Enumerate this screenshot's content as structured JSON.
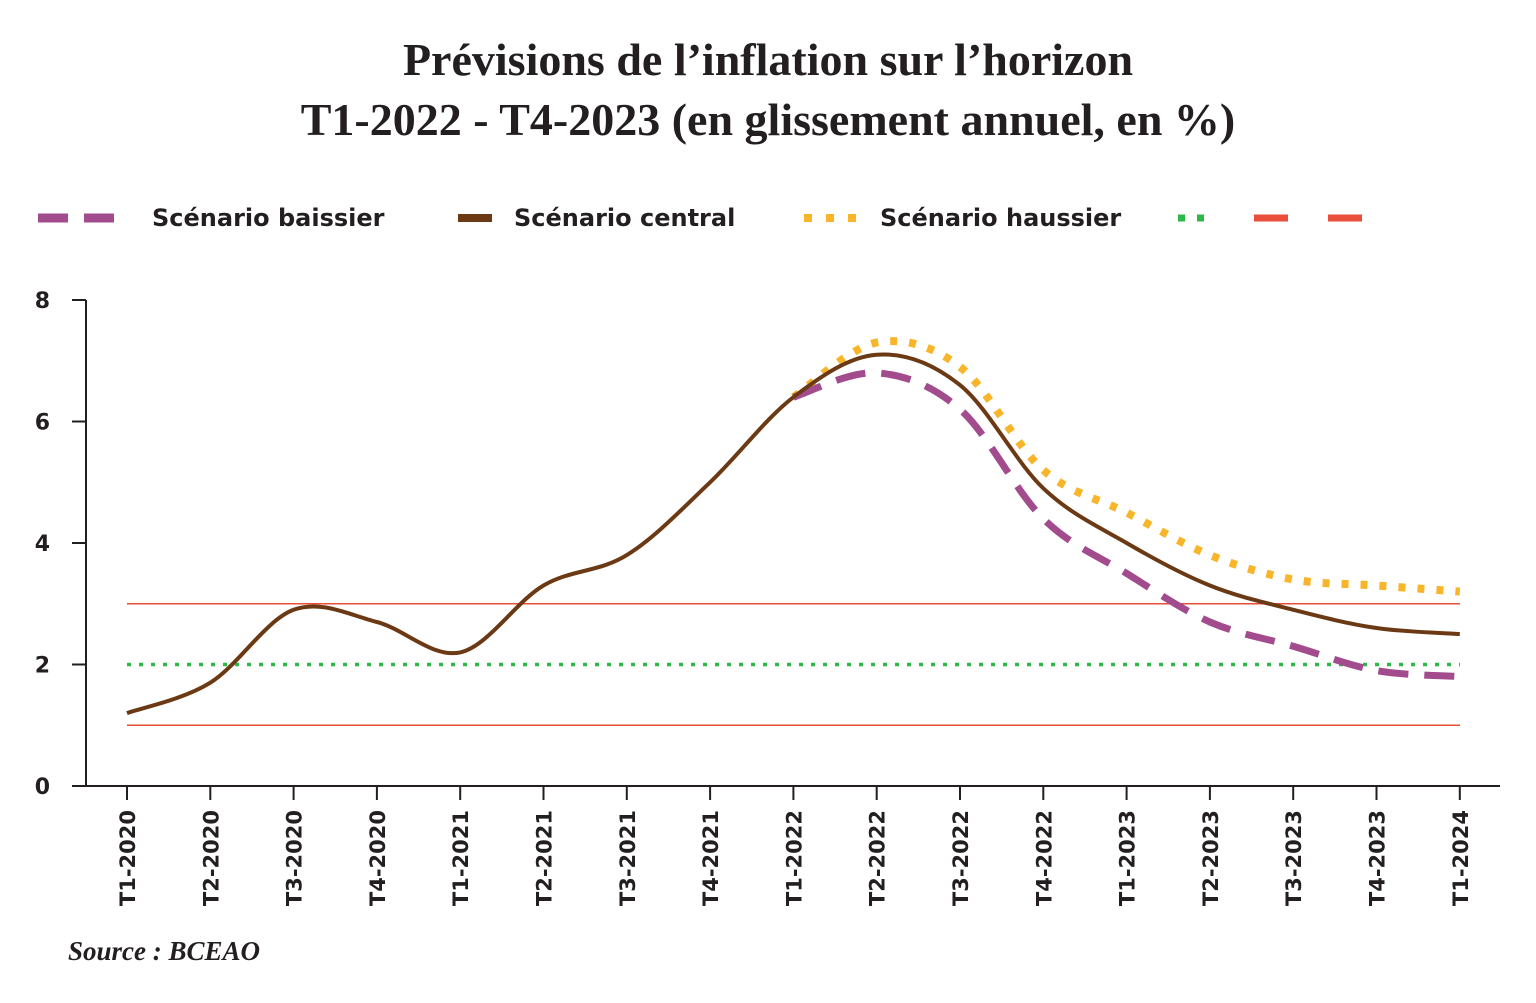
{
  "header": {
    "title_line1": "Prévisions de l’inflation sur l’horizon",
    "title_line2": "T1-2022 - T4-2023 (en glissement annuel, en  %)"
  },
  "legend": [
    {
      "label": "Scénario baissier",
      "color": "#a24c8e",
      "style": "dashed"
    },
    {
      "label": "Scénario central",
      "color": "#6b3a14",
      "style": "solid"
    },
    {
      "label": "Scénario haussier",
      "color": "#f9b52a",
      "style": "dotted"
    },
    {
      "label": "",
      "color": "#2db84a",
      "style": "dotted"
    },
    {
      "label": "",
      "color": "#e94e3a",
      "style": "dashed"
    }
  ],
  "footer": {
    "source": "Source : BCEAO"
  },
  "chart_data": {
    "type": "line",
    "title": "Prévisions de l’inflation sur l’horizon T1-2022 - T4-2023 (en glissement annuel, en  %)",
    "xlabel": "",
    "ylabel": "",
    "ylim": [
      0,
      8
    ],
    "yticks": [
      "0",
      "2",
      "4",
      "6",
      "8"
    ],
    "categories": [
      "T1-2020",
      "T2-2020",
      "T3-2020",
      "T4-2020",
      "T1-2021",
      "T2-2021",
      "T3-2021",
      "T4-2021",
      "T1-2022",
      "T2-2022",
      "T3-2022",
      "T4-2022",
      "T1-2023",
      "T2-2023",
      "T3-2023",
      "T4-2023",
      "T1-2024"
    ],
    "series": [
      {
        "name": "Scénario central",
        "color": "#6b3a14",
        "style": "solid",
        "values": [
          1.2,
          1.7,
          2.9,
          2.7,
          2.2,
          3.3,
          3.8,
          5.0,
          6.4,
          7.1,
          6.6,
          4.9,
          4.0,
          3.3,
          2.9,
          2.6,
          2.5
        ]
      },
      {
        "name": "Scénario baissier",
        "color": "#a24c8e",
        "style": "dashed",
        "values": [
          null,
          null,
          null,
          null,
          null,
          null,
          null,
          null,
          6.4,
          6.8,
          6.2,
          4.4,
          3.5,
          2.7,
          2.3,
          1.9,
          1.8
        ]
      },
      {
        "name": "Scénario haussier",
        "color": "#f9b52a",
        "style": "dotted",
        "values": [
          null,
          null,
          null,
          null,
          null,
          null,
          null,
          null,
          6.4,
          7.3,
          6.9,
          5.2,
          4.5,
          3.8,
          3.4,
          3.3,
          3.2
        ]
      }
    ],
    "reference_lines": [
      {
        "value": 2,
        "color": "#2db84a",
        "style": "dotted"
      },
      {
        "value": 3,
        "color": "#e94e3a",
        "style": "solid"
      },
      {
        "value": 1,
        "color": "#e94e3a",
        "style": "solid"
      }
    ],
    "grid": false,
    "legend_position": "top"
  }
}
